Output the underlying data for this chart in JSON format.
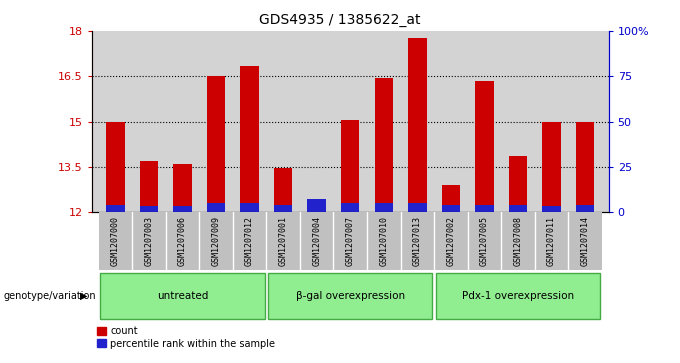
{
  "title": "GDS4935 / 1385622_at",
  "samples": [
    "GSM1207000",
    "GSM1207003",
    "GSM1207006",
    "GSM1207009",
    "GSM1207012",
    "GSM1207001",
    "GSM1207004",
    "GSM1207007",
    "GSM1207010",
    "GSM1207013",
    "GSM1207002",
    "GSM1207005",
    "GSM1207008",
    "GSM1207011",
    "GSM1207014"
  ],
  "count_values": [
    15.0,
    13.7,
    13.6,
    16.5,
    16.85,
    13.45,
    12.15,
    15.05,
    16.45,
    17.75,
    12.9,
    16.35,
    13.85,
    15.0,
    15.0
  ],
  "percentile_values": [
    12.25,
    12.2,
    12.2,
    12.3,
    12.3,
    12.25,
    12.45,
    12.3,
    12.3,
    12.3,
    12.25,
    12.25,
    12.25,
    12.2,
    12.25
  ],
  "bar_bottom": 12.0,
  "ylim_left": [
    12.0,
    18.0
  ],
  "ylim_right": [
    0,
    100
  ],
  "yticks_left": [
    12.0,
    13.5,
    15.0,
    16.5,
    18.0
  ],
  "ytick_labels_left": [
    "12",
    "13.5",
    "15",
    "16.5",
    "18"
  ],
  "yticks_right": [
    0,
    25,
    50,
    75,
    100
  ],
  "ytick_labels_right": [
    "0",
    "25",
    "50",
    "75",
    "100%"
  ],
  "gridlines": [
    13.5,
    15.0,
    16.5
  ],
  "groups": [
    {
      "label": "untreated",
      "start": 0,
      "end": 5
    },
    {
      "label": "β-gal overexpression",
      "start": 5,
      "end": 10
    },
    {
      "label": "Pdx-1 overexpression",
      "start": 10,
      "end": 15
    }
  ],
  "group_label_prefix": "genotype/variation",
  "legend_count_label": "count",
  "legend_pct_label": "percentile rank within the sample",
  "bar_color_red": "#cc0000",
  "bar_color_blue": "#2222cc",
  "bar_width": 0.55,
  "bg_color_axes": "#d3d3d3",
  "bg_color_sample_box": "#c0c0c0",
  "bg_color_group": "#90ee90",
  "bg_color_group_border": "#44aa44",
  "bg_color_figure": "#ffffff",
  "left_axis_color": "#cc0000",
  "right_axis_color": "#0000cc",
  "title_fontsize": 10,
  "tick_fontsize": 8,
  "label_fontsize": 7,
  "sample_fontsize": 6
}
